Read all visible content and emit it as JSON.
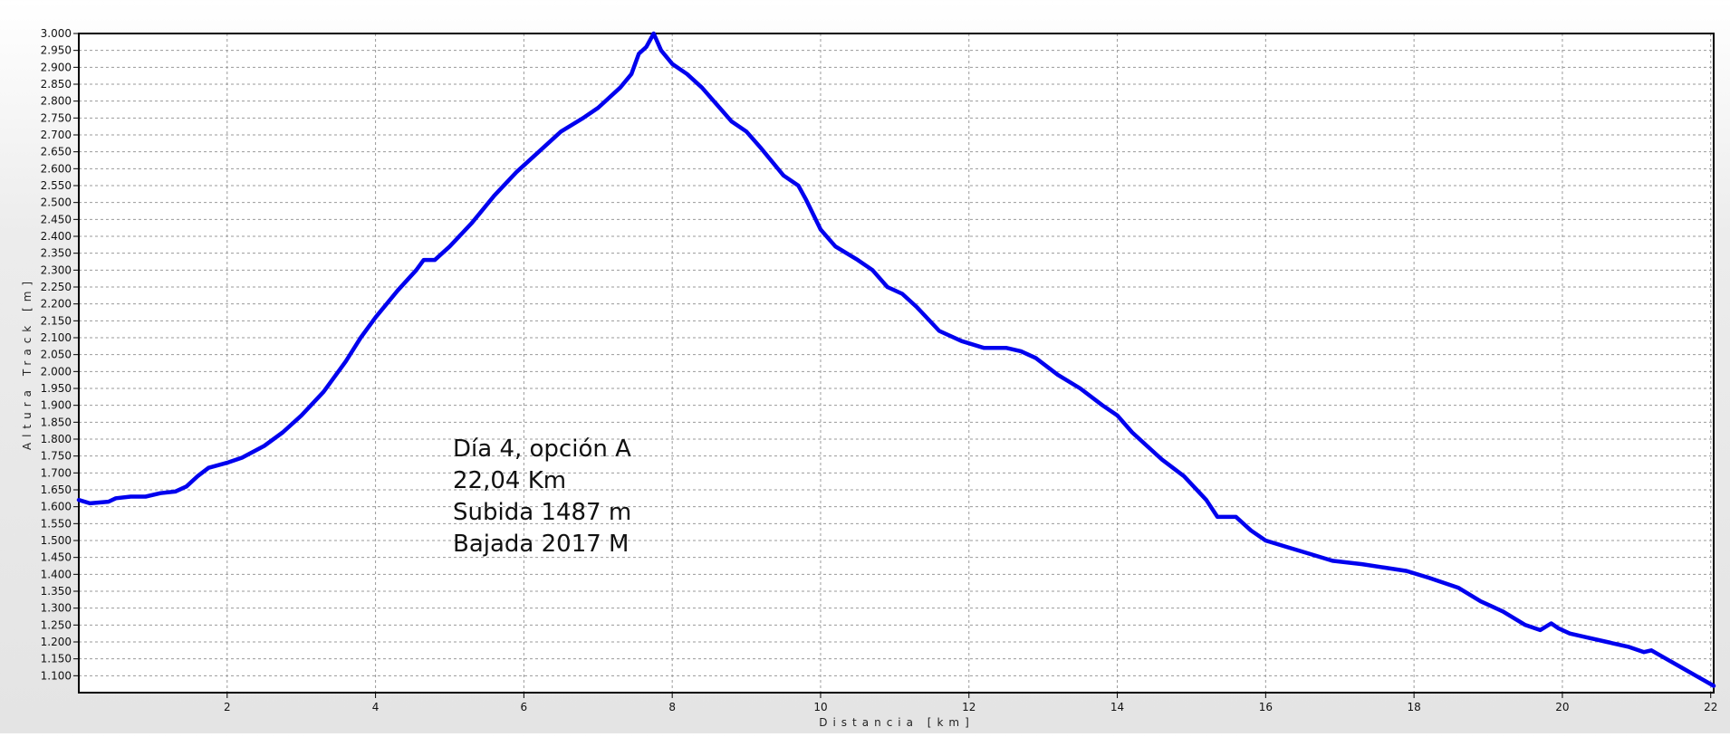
{
  "chart_data": {
    "type": "line",
    "title": "",
    "xlabel": "Distancia [km]",
    "ylabel": "Altura Track [m]",
    "xlim": [
      0,
      22.04
    ],
    "ylim": [
      1050,
      3000
    ],
    "x_ticks": [
      2,
      4,
      6,
      8,
      10,
      12,
      14,
      16,
      18,
      20,
      22
    ],
    "y_ticks": [
      "1.100",
      "1.150",
      "1.200",
      "1.250",
      "1.300",
      "1.350",
      "1.400",
      "1.450",
      "1.500",
      "1.550",
      "1.600",
      "1.650",
      "1.700",
      "1.750",
      "1.800",
      "1.850",
      "1.900",
      "1.950",
      "2.000",
      "2.050",
      "2.100",
      "2.150",
      "2.200",
      "2.250",
      "2.300",
      "2.350",
      "2.400",
      "2.450",
      "2.500",
      "2.550",
      "2.600",
      "2.650",
      "2.700",
      "2.750",
      "2.800",
      "2.850",
      "2.900",
      "2.950",
      "3.000"
    ],
    "grid": true,
    "line_color": "#0000ee",
    "annotations": [
      "Día 4, opción A",
      "22,04 Km",
      "Subida 1487 m",
      "Bajada 2017 M"
    ],
    "series": [
      {
        "x": [
          0,
          0.15,
          0.4,
          0.5,
          0.7,
          0.9,
          1.1,
          1.3,
          1.45,
          1.6,
          1.75,
          2.0,
          2.2,
          2.5,
          2.75,
          3.0,
          3.3,
          3.6,
          3.8,
          4.0,
          4.3,
          4.55,
          4.65,
          4.8,
          5.0,
          5.3,
          5.6,
          5.9,
          6.2,
          6.5,
          6.8,
          7.0,
          7.3,
          7.45,
          7.55,
          7.65,
          7.75,
          7.85,
          8.0,
          8.2,
          8.4,
          8.6,
          8.8,
          9.0,
          9.2,
          9.5,
          9.7,
          9.8,
          10.0,
          10.2,
          10.5,
          10.7,
          10.9,
          11.1,
          11.3,
          11.6,
          11.9,
          12.2,
          12.5,
          12.7,
          12.9,
          13.2,
          13.5,
          13.8,
          14.0,
          14.2,
          14.4,
          14.6,
          14.9,
          15.2,
          15.35,
          15.4,
          15.6,
          15.8,
          16.0,
          16.3,
          16.6,
          16.9,
          17.3,
          17.6,
          17.9,
          18.2,
          18.6,
          18.9,
          19.2,
          19.5,
          19.7,
          19.85,
          19.95,
          20.1,
          20.3,
          20.6,
          20.9,
          21.1,
          21.2,
          21.4,
          21.6,
          21.8,
          22.04
        ],
        "y": [
          1620,
          1610,
          1615,
          1625,
          1630,
          1630,
          1640,
          1645,
          1660,
          1690,
          1715,
          1730,
          1745,
          1780,
          1820,
          1870,
          1940,
          2030,
          2100,
          2160,
          2240,
          2300,
          2330,
          2330,
          2370,
          2440,
          2520,
          2590,
          2650,
          2710,
          2750,
          2780,
          2840,
          2880,
          2940,
          2960,
          3000,
          2950,
          2910,
          2880,
          2840,
          2790,
          2740,
          2710,
          2660,
          2580,
          2550,
          2510,
          2420,
          2370,
          2330,
          2300,
          2250,
          2230,
          2190,
          2120,
          2090,
          2070,
          2070,
          2060,
          2040,
          1990,
          1950,
          1900,
          1870,
          1820,
          1780,
          1740,
          1690,
          1620,
          1570,
          1570,
          1570,
          1530,
          1500,
          1480,
          1460,
          1440,
          1430,
          1420,
          1410,
          1390,
          1360,
          1320,
          1290,
          1250,
          1235,
          1255,
          1240,
          1225,
          1215,
          1200,
          1185,
          1170,
          1175,
          1150,
          1125,
          1100,
          1070
        ]
      }
    ]
  }
}
